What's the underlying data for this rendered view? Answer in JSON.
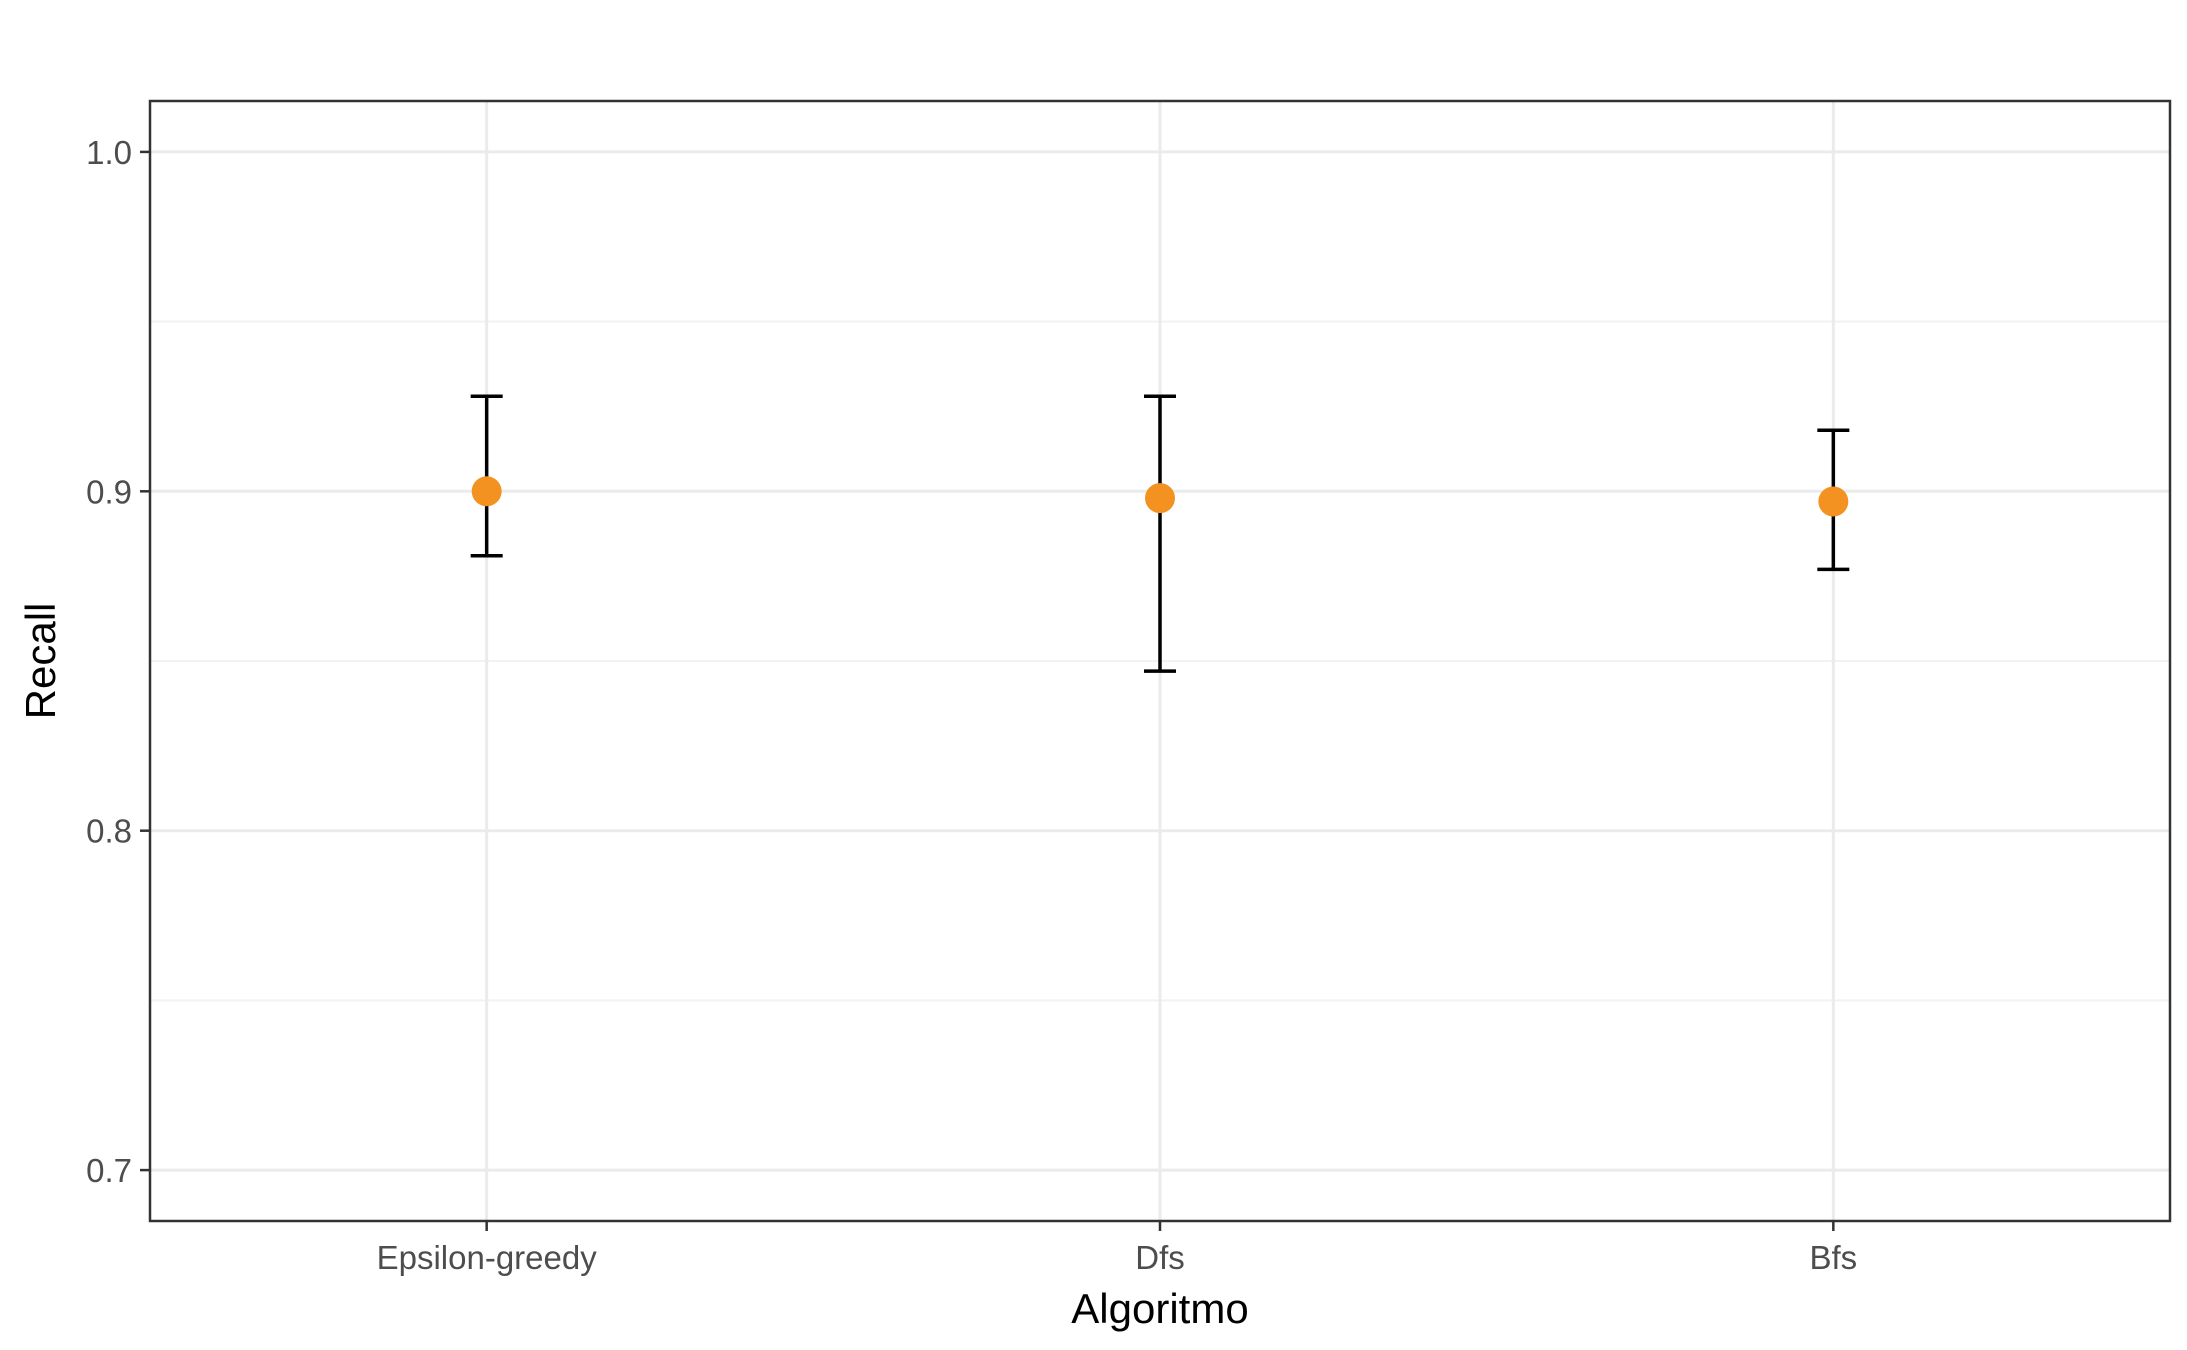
{
  "chart_data": {
    "type": "scatter",
    "title": "",
    "xlabel": "Algoritmo",
    "ylabel": "Recall",
    "categories": [
      "Epsilon-greedy",
      "Dfs",
      "Bfs"
    ],
    "points": [
      {
        "category": "Epsilon-greedy",
        "value": 0.9,
        "lower": 0.881,
        "upper": 0.928
      },
      {
        "category": "Dfs",
        "value": 0.898,
        "lower": 0.847,
        "upper": 0.928
      },
      {
        "category": "Bfs",
        "value": 0.897,
        "lower": 0.877,
        "upper": 0.918
      }
    ],
    "ylim": [
      0.685,
      1.015
    ],
    "yticks": [
      0.7,
      0.8,
      0.9,
      1.0
    ],
    "ytick_labels": [
      "0.7",
      "0.8",
      "0.9",
      "1.0"
    ],
    "grid": true,
    "legend": "none",
    "colors": {
      "point": "#F39221",
      "errorbar": "#000000",
      "grid_major": "#EBEBEB",
      "grid_minor": "#F2F2F2",
      "panel_border": "#333333",
      "tick_label": "#4D4D4D"
    }
  }
}
